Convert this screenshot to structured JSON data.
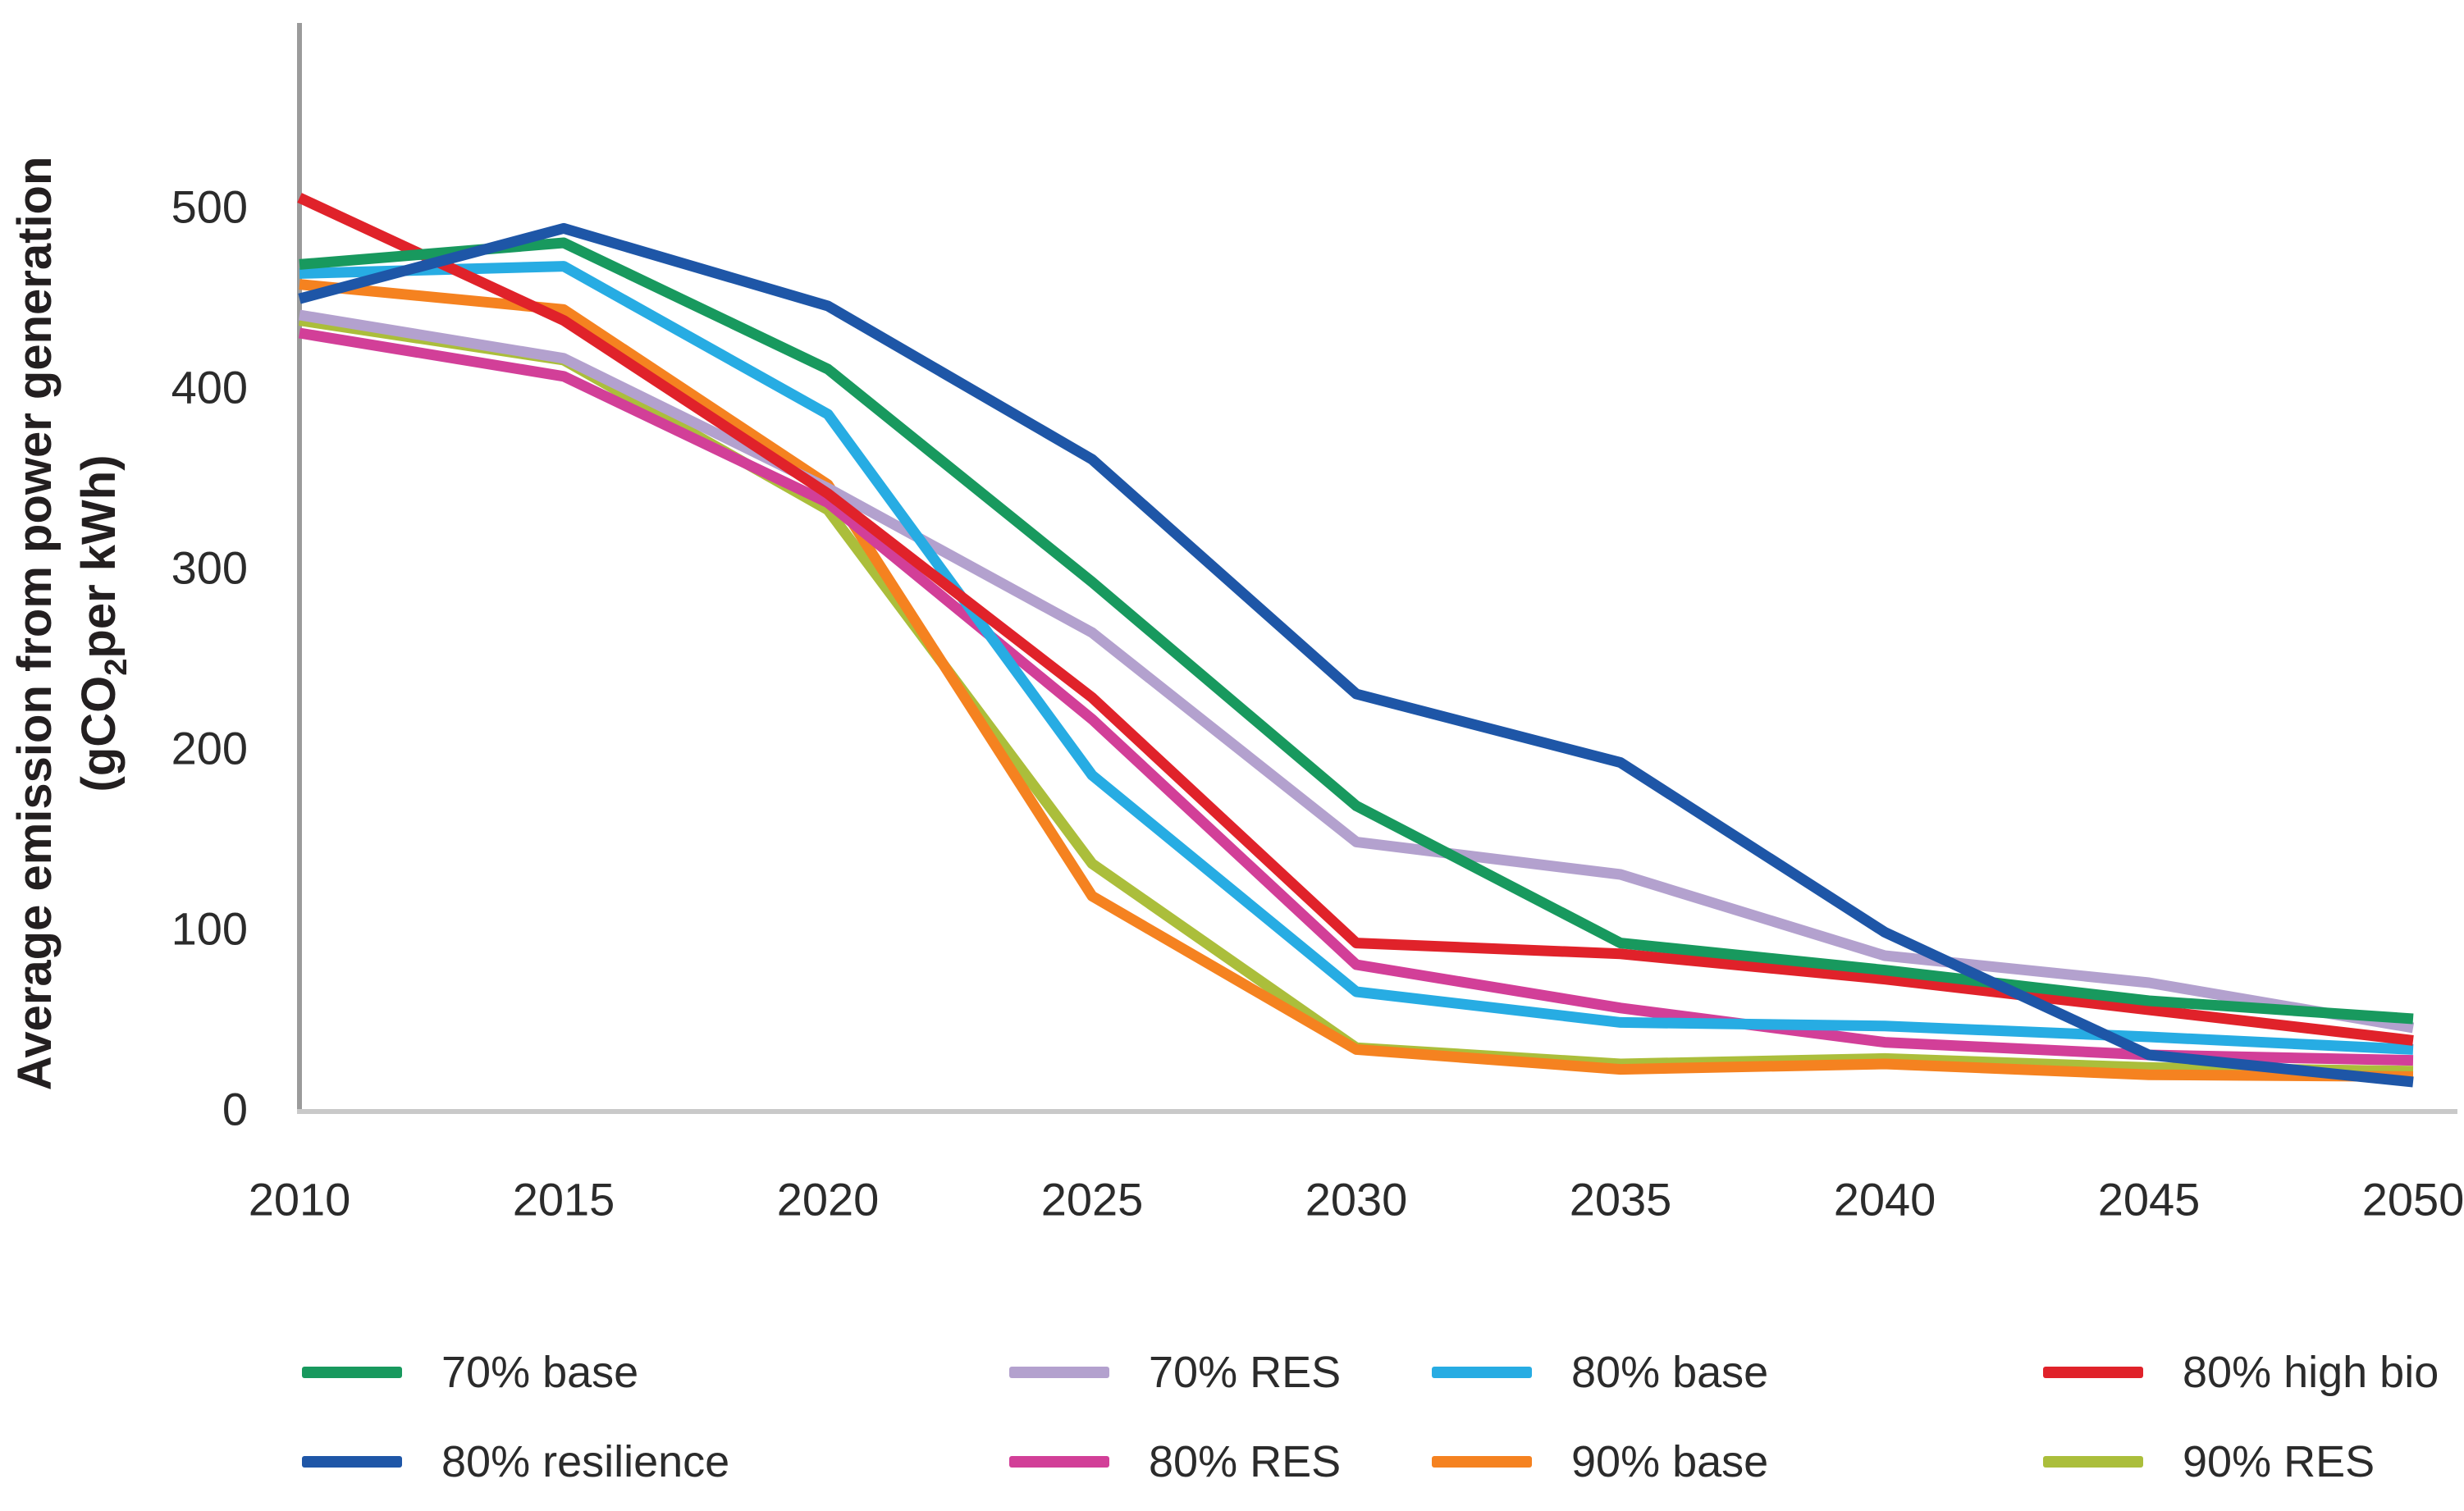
{
  "y_axis": {
    "title": "Average emission from power generation",
    "unit_pre": "(gCO",
    "unit_sub": "2",
    "unit_post": "per kWh)",
    "ticks": [
      "0",
      "100",
      "200",
      "300",
      "400",
      "500"
    ]
  },
  "x_axis": {
    "ticks": [
      "2010",
      "2015",
      "2020",
      "2025",
      "2030",
      "2035",
      "2040",
      "2045",
      "2050"
    ]
  },
  "chart_data": {
    "type": "line",
    "title": "",
    "xlabel": "",
    "ylabel": "Average emission from power generation (gCO2per kWh)",
    "x": [
      2010,
      2015,
      2020,
      2025,
      2030,
      2035,
      2040,
      2045,
      2050
    ],
    "xlim": [
      2010,
      2050
    ],
    "ylim": [
      0,
      580
    ],
    "grid": false,
    "legend_position": "bottom",
    "series": [
      {
        "name": "90% RES",
        "color": "#ABBE3B",
        "values": [
          437,
          415,
          332,
          136,
          34,
          25,
          28,
          23,
          21
        ]
      },
      {
        "name": "90% base",
        "color": "#F58220",
        "values": [
          457,
          443,
          346,
          118,
          33,
          22,
          25,
          19,
          18
        ]
      },
      {
        "name": "80% RES",
        "color": "#D23F98",
        "values": [
          430,
          406,
          336,
          216,
          80,
          56,
          37,
          30,
          27
        ]
      },
      {
        "name": "70% RES",
        "color": "#B3A1CE",
        "values": [
          440,
          416,
          344,
          264,
          148,
          130,
          85,
          70,
          45
        ]
      },
      {
        "name": "80% base",
        "color": "#27ACE3",
        "values": [
          463,
          467,
          385,
          185,
          65,
          48,
          46,
          40,
          33
        ]
      },
      {
        "name": "80% high bio",
        "color": "#E0222A",
        "values": [
          505,
          437,
          341,
          228,
          92,
          86,
          72,
          55,
          38
        ]
      },
      {
        "name": "70% base",
        "color": "#18995E",
        "values": [
          468,
          480,
          410,
          292,
          168,
          92,
          77,
          60,
          50
        ]
      },
      {
        "name": "80% resilience",
        "color": "#1E56A7",
        "values": [
          449,
          488,
          445,
          360,
          230,
          192,
          98,
          30,
          15
        ]
      }
    ]
  },
  "legend": {
    "rows": [
      [
        "70% base",
        "70% RES",
        "80% base",
        "80% high bio"
      ],
      [
        "80% resilience",
        "80% RES",
        "90% base",
        "90% RES"
      ]
    ]
  }
}
